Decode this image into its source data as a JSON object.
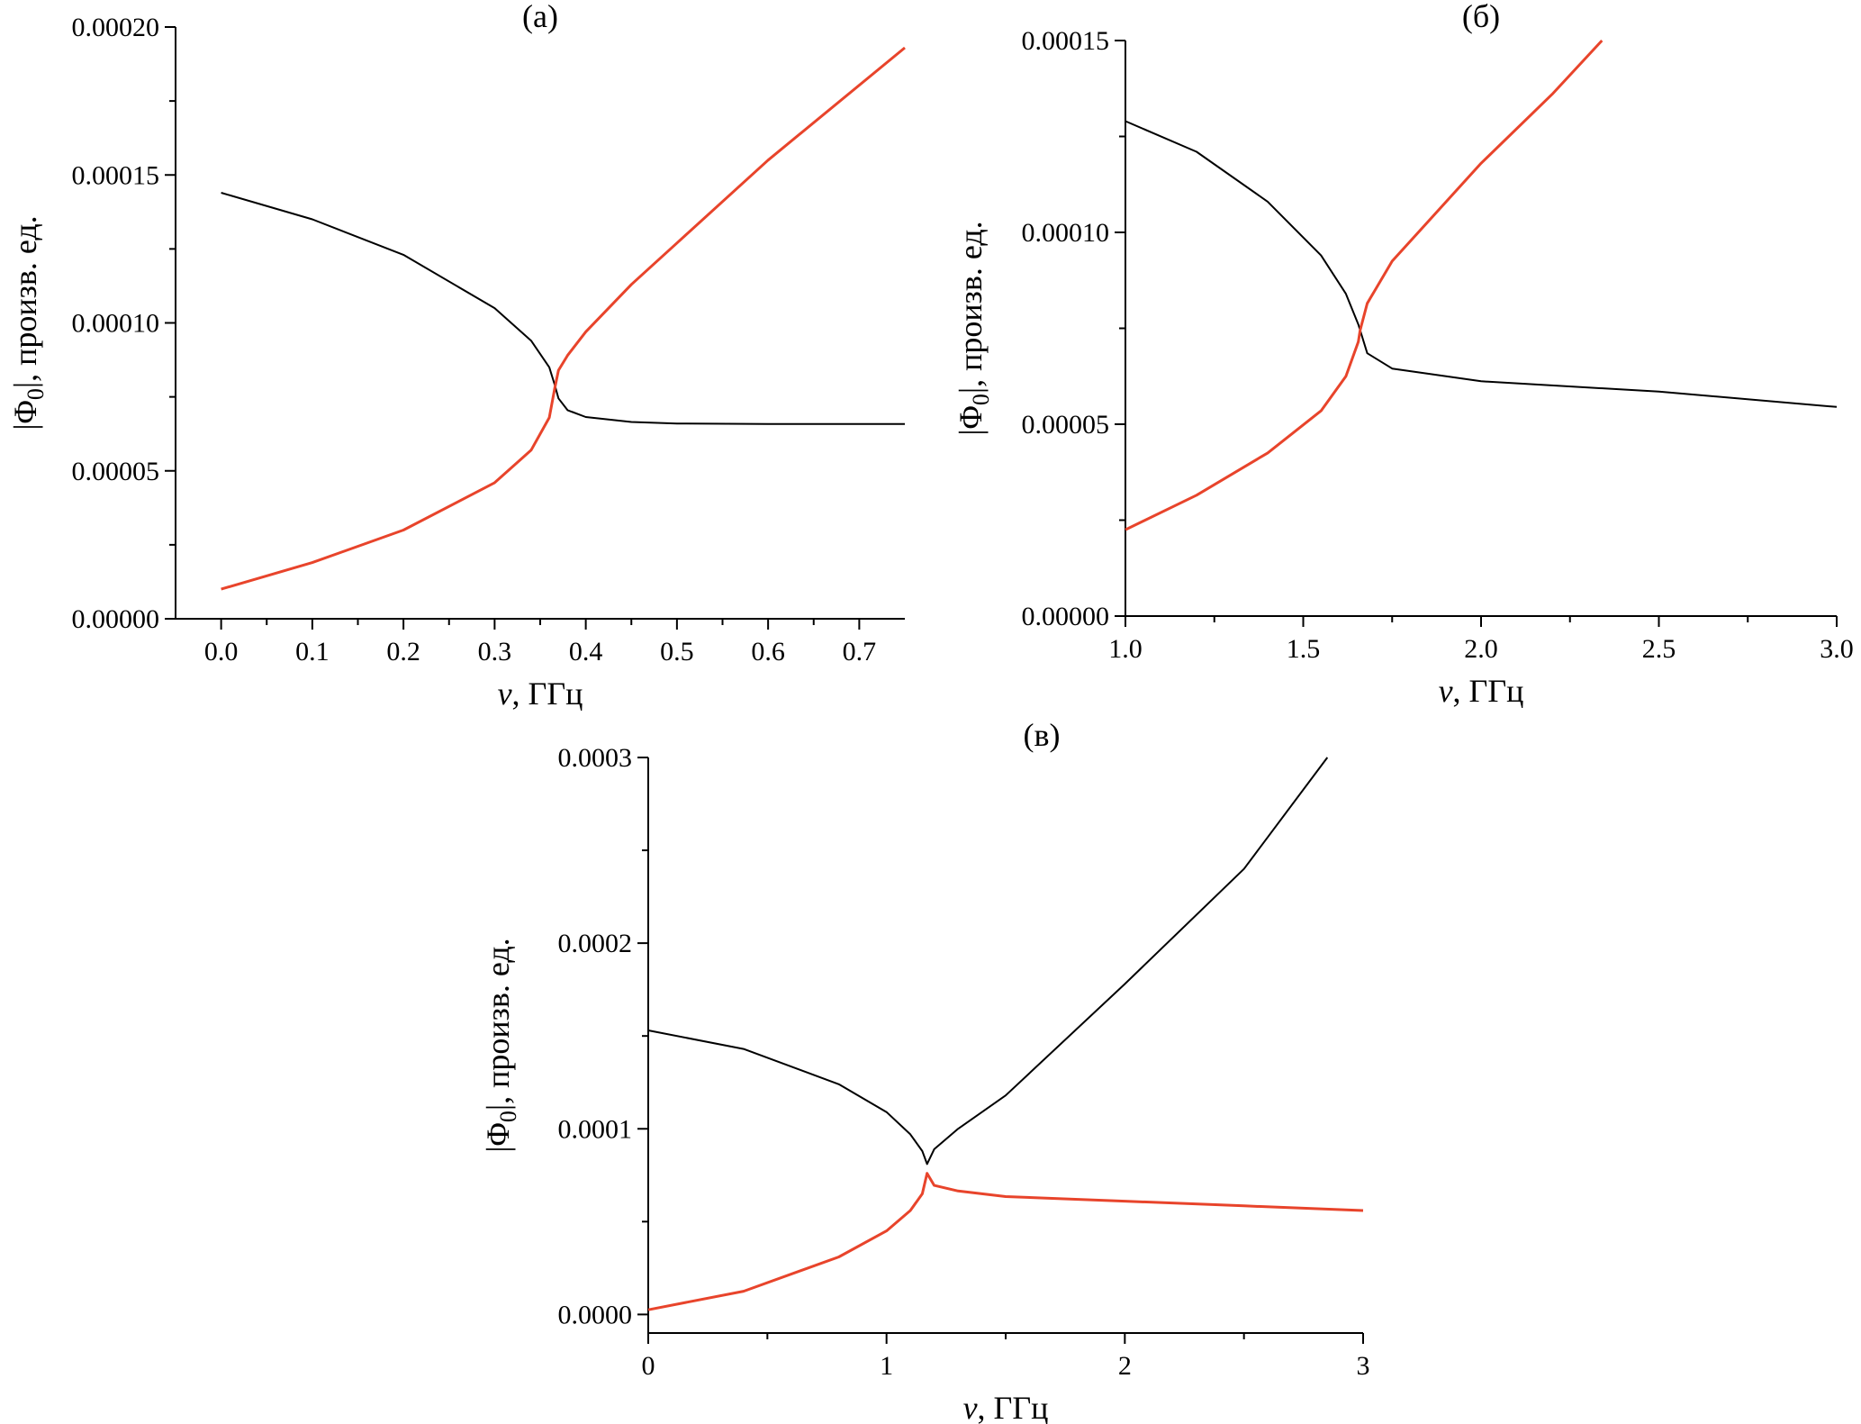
{
  "chart_data": [
    {
      "type": "line",
      "panel_label": "(а)",
      "xlabel_var": "ν",
      "xlabel_unit": ", ГГц",
      "ylabel_prefix": "|Φ",
      "ylabel_sub": "0",
      "ylabel_suffix": "|, произв. ед.",
      "xlim": [
        -0.05,
        0.75
      ],
      "ylim": [
        0,
        0.0002
      ],
      "xticks": [
        "0.0",
        "0.1",
        "0.2",
        "0.3",
        "0.4",
        "0.5",
        "0.6",
        "0.7"
      ],
      "xtick_values": [
        0,
        0.1,
        0.2,
        0.3,
        0.4,
        0.5,
        0.6,
        0.7
      ],
      "yticks": [
        "0.00000",
        "0.00005",
        "0.00010",
        "0.00015",
        "0.00020"
      ],
      "ytick_values": [
        0,
        5e-05,
        0.0001,
        0.00015,
        0.0002
      ],
      "series": [
        {
          "color": "#000000",
          "x": [
            0,
            0.1,
            0.2,
            0.3,
            0.34,
            0.36,
            0.366,
            0.37,
            0.38,
            0.4,
            0.45,
            0.5,
            0.6,
            0.75
          ],
          "y": [
            0.000144,
            0.000135,
            0.000123,
            0.000105,
            9.4e-05,
            8.5e-05,
            7.9e-05,
            7.45e-05,
            7.05e-05,
            6.82e-05,
            6.65e-05,
            6.6e-05,
            6.58e-05,
            6.58e-05
          ]
        },
        {
          "color": "#e8442b",
          "x": [
            0,
            0.1,
            0.2,
            0.3,
            0.34,
            0.36,
            0.366,
            0.37,
            0.38,
            0.4,
            0.45,
            0.5,
            0.6,
            0.75
          ],
          "y": [
            1e-05,
            1.9e-05,
            3e-05,
            4.6e-05,
            5.7e-05,
            6.8e-05,
            7.8e-05,
            8.4e-05,
            8.9e-05,
            9.7e-05,
            0.000113,
            0.000127,
            0.000155,
            0.000193
          ]
        }
      ]
    },
    {
      "type": "line",
      "panel_label": "(б)",
      "xlabel_var": "ν",
      "xlabel_unit": ", ГГц",
      "ylabel_prefix": "|Φ",
      "ylabel_sub": "0",
      "ylabel_suffix": "|, произв. ед.",
      "xlim": [
        1.0,
        3.0
      ],
      "ylim": [
        0,
        0.00015
      ],
      "xticks": [
        "1.0",
        "1.5",
        "2.0",
        "2.5",
        "3.0"
      ],
      "xtick_values": [
        1.0,
        1.5,
        2.0,
        2.5,
        3.0
      ],
      "yticks": [
        "0.00000",
        "0.00005",
        "0.00010",
        "0.00015"
      ],
      "ytick_values": [
        0,
        5e-05,
        0.0001,
        0.00015
      ],
      "series": [
        {
          "color": "#000000",
          "x": [
            1.0,
            1.2,
            1.4,
            1.55,
            1.62,
            1.655,
            1.66,
            1.68,
            1.75,
            2.0,
            2.5,
            3.0
          ],
          "y": [
            0.000129,
            0.000121,
            0.000108,
            9.4e-05,
            8.4e-05,
            7.6e-05,
            7.45e-05,
            6.85e-05,
            6.45e-05,
            6.12e-05,
            5.85e-05,
            5.45e-05
          ]
        },
        {
          "color": "#e8442b",
          "x": [
            1.0,
            1.2,
            1.4,
            1.55,
            1.62,
            1.655,
            1.66,
            1.68,
            1.75,
            2.0,
            2.2,
            2.34
          ],
          "y": [
            2.25e-05,
            3.15e-05,
            4.25e-05,
            5.35e-05,
            6.25e-05,
            7.15e-05,
            7.45e-05,
            8.15e-05,
            9.25e-05,
            0.000118,
            0.000136,
            0.00015
          ]
        }
      ]
    },
    {
      "type": "line",
      "panel_label": "(в)",
      "xlabel_var": "ν",
      "xlabel_unit": ", ГГц",
      "ylabel_prefix": "|Φ",
      "ylabel_sub": "0",
      "ylabel_suffix": "|, произв. ед.",
      "xlim": [
        0,
        3
      ],
      "ylim": [
        -1e-05,
        0.0003
      ],
      "xticks": [
        "0",
        "1",
        "2",
        "3"
      ],
      "xtick_values": [
        0,
        1,
        2,
        3
      ],
      "yticks": [
        "0.0000",
        "0.0001",
        "0.0002",
        "0.0003"
      ],
      "ytick_values": [
        0,
        0.0001,
        0.0002,
        0.0003
      ],
      "series": [
        {
          "color": "#000000",
          "x": [
            0,
            0.4,
            0.8,
            1.0,
            1.1,
            1.15,
            1.17,
            1.2,
            1.3,
            1.5,
            2.0,
            2.5,
            2.85
          ],
          "y": [
            0.000153,
            0.000143,
            0.000124,
            0.000109,
            9.7e-05,
            8.8e-05,
            8.1e-05,
            8.9e-05,
            0.0001,
            0.000118,
            0.000178,
            0.00024,
            0.0003
          ]
        },
        {
          "color": "#e8442b",
          "x": [
            0,
            0.4,
            0.8,
            1.0,
            1.1,
            1.15,
            1.17,
            1.2,
            1.3,
            1.5,
            2.0,
            2.5,
            3.0
          ],
          "y": [
            2.5e-06,
            1.25e-05,
            3.1e-05,
            4.5e-05,
            5.6e-05,
            6.5e-05,
            7.6e-05,
            6.95e-05,
            6.65e-05,
            6.35e-05,
            6.1e-05,
            5.85e-05,
            5.6e-05
          ]
        }
      ]
    }
  ]
}
